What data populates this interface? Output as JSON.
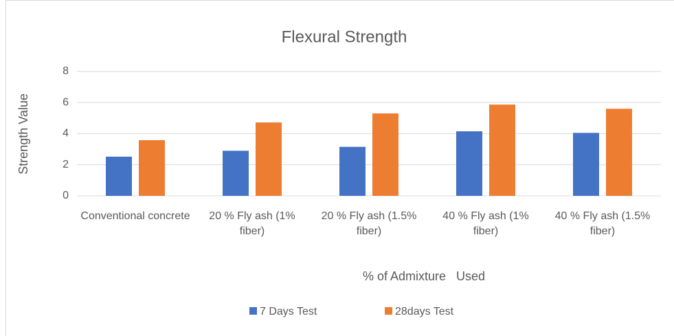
{
  "chart_data": {
    "type": "bar",
    "title": "Flexural Strength",
    "y_label": "Strength Value",
    "x_label": "% of Admixture   Used",
    "categories": [
      "Conventional concrete",
      "20 % Fly ash (1% fiber)",
      "20 % Fly ash (1.5% fiber)",
      "40 % Fly ash (1% fiber)",
      "40 % Fly ash (1.5% fiber)"
    ],
    "series": [
      {
        "name": "7 Days Test",
        "color": "#4472c4",
        "values": [
          2.52,
          2.9,
          3.15,
          4.15,
          4.05
        ]
      },
      {
        "name": "28days Test",
        "color": "#ed7d31",
        "values": [
          3.58,
          4.72,
          5.3,
          5.87,
          5.6
        ]
      }
    ],
    "ylim": [
      0,
      8
    ],
    "yticks": [
      0,
      2,
      4,
      6,
      8
    ],
    "grid": true,
    "legend": "bottom"
  }
}
